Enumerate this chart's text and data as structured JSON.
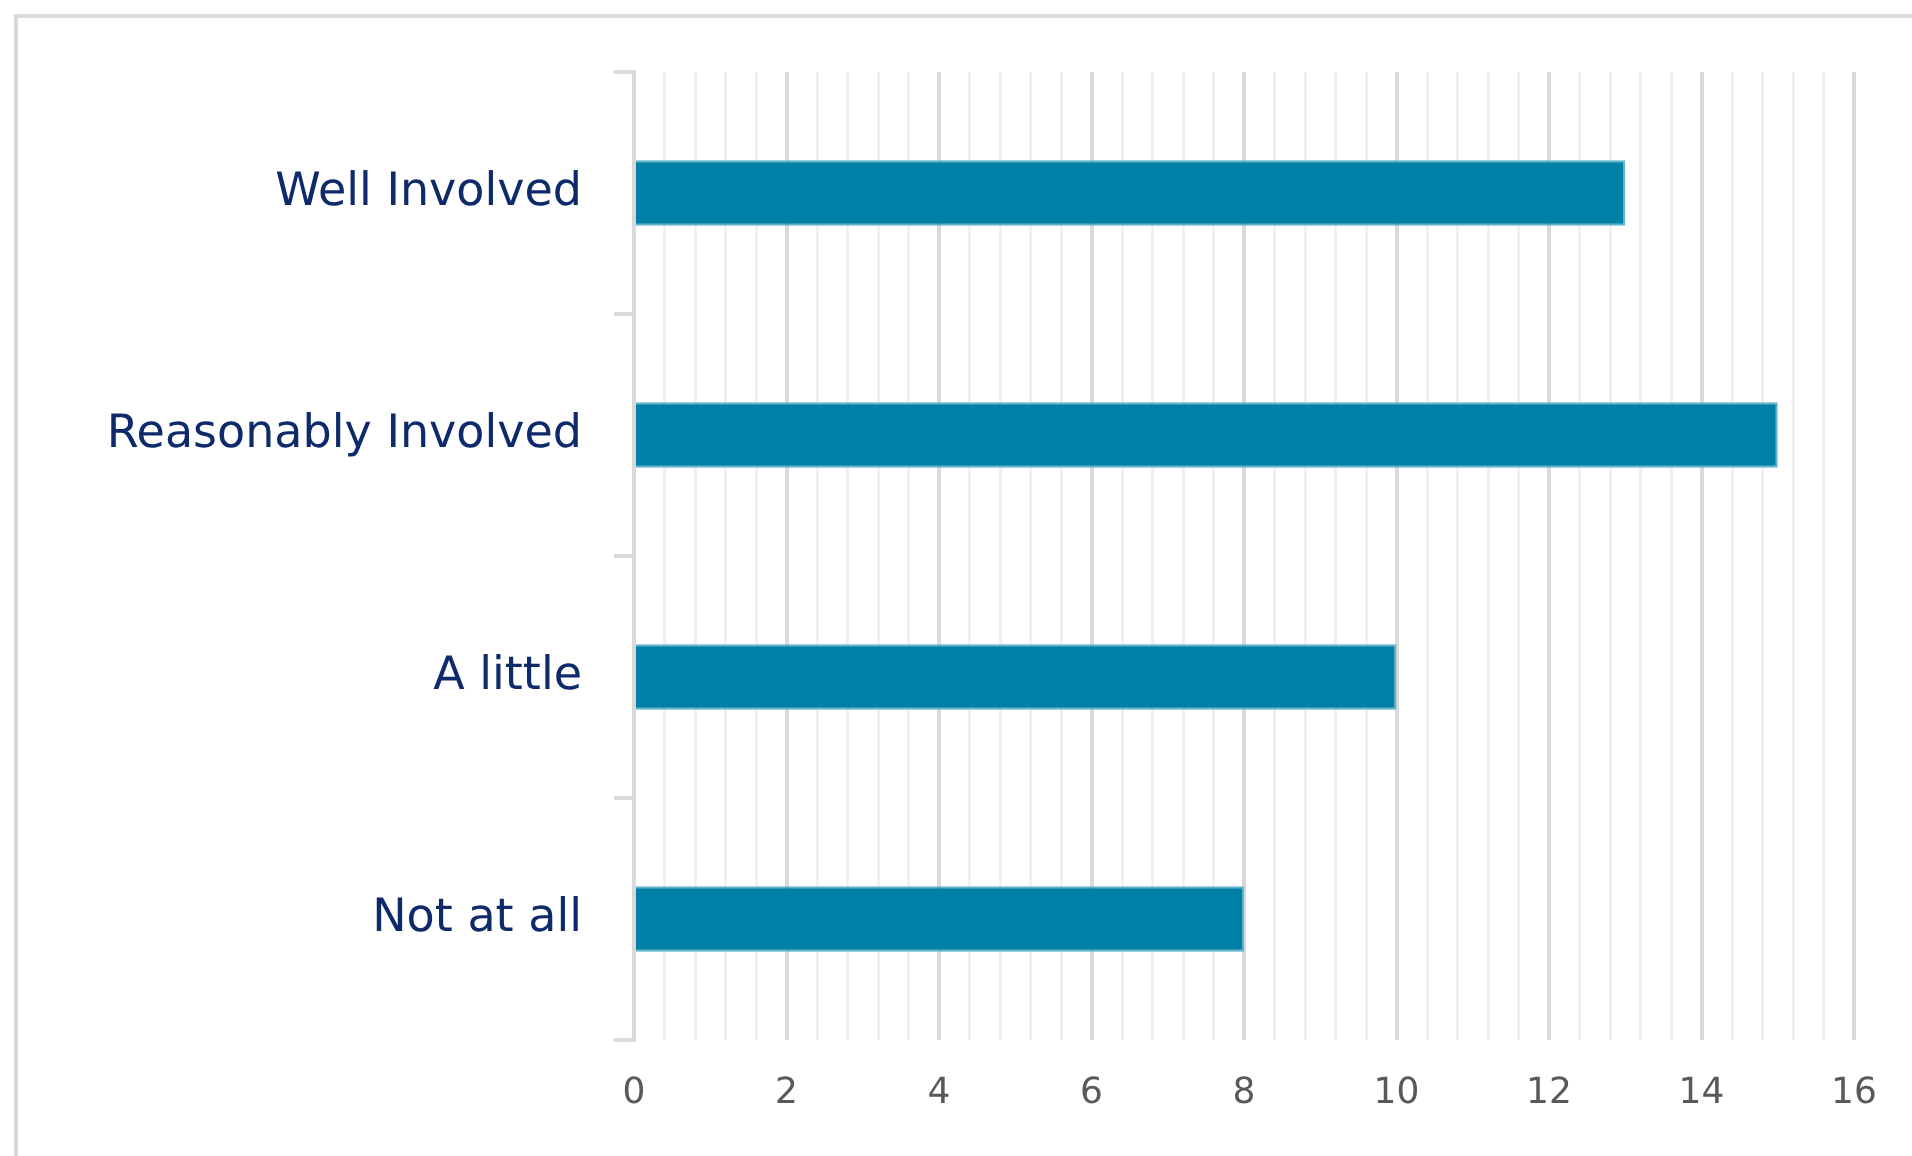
{
  "chart_data": {
    "type": "bar",
    "orientation": "horizontal",
    "categories": [
      "Well Involved",
      "Reasonably Involved",
      "A little",
      "Not at all"
    ],
    "values": [
      13,
      15,
      10,
      8
    ],
    "color": "#0080a7",
    "xlim": [
      0,
      16
    ],
    "xticks": [
      0,
      {
        "value": 0.4,
        "label": null
      },
      {
        "value": 0.8,
        "label": null
      },
      {
        "value": 1.2,
        "label": null
      },
      {
        "value": 1.6,
        "label": null
      },
      2,
      {
        "value": 2.4,
        "label": null
      },
      {
        "value": 2.8,
        "label": null
      },
      {
        "value": 3.2,
        "label": null
      },
      {
        "value": 3.6,
        "label": null
      },
      4,
      {
        "value": 4.4,
        "label": null
      },
      {
        "value": 4.8,
        "label": null
      },
      {
        "value": 5.2,
        "label": null
      },
      {
        "value": 5.6,
        "label": null
      },
      6,
      {
        "value": 6.4,
        "label": null
      },
      {
        "value": 6.8,
        "label": null
      },
      {
        "value": 7.2,
        "label": null
      },
      {
        "value": 7.6,
        "label": null
      },
      8,
      {
        "value": 8.4,
        "label": null
      },
      {
        "value": 8.8,
        "label": null
      },
      {
        "value": 9.2,
        "label": null
      },
      {
        "value": 9.6,
        "label": null
      },
      10,
      {
        "value": 10.4,
        "label": null
      },
      {
        "value": 10.8,
        "label": null
      },
      {
        "value": 11.2,
        "label": null
      },
      {
        "value": 11.6,
        "label": null
      },
      12,
      {
        "value": 12.4,
        "label": null
      },
      {
        "value": 12.8,
        "label": null
      },
      {
        "value": 13.2,
        "label": null
      },
      {
        "value": 13.6,
        "label": null
      },
      14,
      {
        "value": 14.4,
        "label": null
      },
      {
        "value": 14.8,
        "label": null
      },
      {
        "value": 15.2,
        "label": null
      },
      {
        "value": 15.6,
        "label": null
      },
      16
    ],
    "grid": "x",
    "legend": false
  }
}
